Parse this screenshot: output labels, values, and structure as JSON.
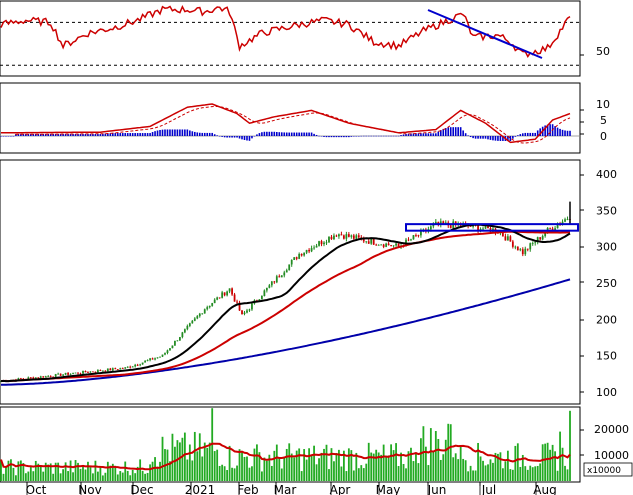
{
  "chart_data": [
    {
      "type": "line",
      "panel": "RSI",
      "yticks": [
        "50"
      ],
      "reference_lines": [
        70,
        30
      ],
      "series": [
        {
          "color": "#cc0000"
        }
      ],
      "trendline_color": "#0000cc"
    },
    {
      "type": "line",
      "panel": "MACD",
      "yticks": [
        "10",
        "5",
        "0"
      ],
      "series": [
        {
          "color": "#cc0000",
          "style": "solid"
        },
        {
          "color": "#cc0000",
          "style": "dashed"
        },
        {
          "type": "bar",
          "color": "#0000cc"
        }
      ]
    },
    {
      "type": "line",
      "panel": "Price",
      "yticks": [
        "400",
        "350",
        "300",
        "250",
        "200",
        "150",
        "100"
      ],
      "price_style": "candlestick-green",
      "series": [
        {
          "color": "#228b22",
          "role": "price"
        },
        {
          "color": "#000000",
          "role": "moving-average"
        },
        {
          "color": "#cc0000",
          "role": "moving-average"
        },
        {
          "color": "#0000aa",
          "role": "moving-average"
        }
      ],
      "box": {
        "y_range": [
          322,
          331
        ],
        "color": "#0000cc"
      }
    },
    {
      "type": "bar",
      "panel": "Volume",
      "yticks": [
        "20000",
        "10000"
      ],
      "multiplier_label": "x10000",
      "bar_color": "#22aa22",
      "ma_color": "#cc0000"
    }
  ],
  "x_axis": {
    "labels": [
      "Oct",
      "Nov",
      "Dec",
      "2021",
      "Feb",
      "Mar",
      "Apr",
      "May",
      "Jun",
      "Jul",
      "Aug"
    ]
  }
}
